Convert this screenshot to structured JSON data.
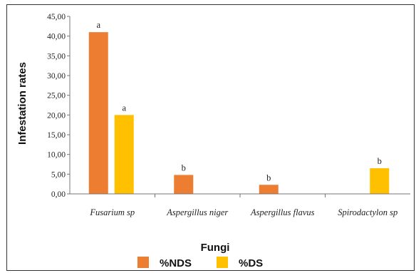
{
  "chart_data": {
    "type": "bar",
    "title": "",
    "xlabel": "Fungi",
    "ylabel": "Infestation rates",
    "ylim": [
      0,
      45
    ],
    "yticks": [
      "0,00",
      "5,00",
      "10,00",
      "15,00",
      "20,00",
      "25,00",
      "30,00",
      "35,00",
      "40,00",
      "45,00"
    ],
    "categories": [
      "Fusarium sp",
      "Aspergillus niger",
      "Aspergillus flavus",
      "Spirodactylon sp"
    ],
    "series": [
      {
        "name": "%NDS",
        "color": "#ED7D31",
        "values": [
          41.0,
          4.8,
          2.3,
          0
        ],
        "labels": [
          "a",
          "b",
          "b",
          ""
        ]
      },
      {
        "name": "%DS",
        "color": "#FFC000",
        "values": [
          20.0,
          0,
          0,
          6.5
        ],
        "labels": [
          "a",
          "",
          "",
          "b"
        ]
      }
    ],
    "grid": false,
    "legend_position": "bottom"
  }
}
